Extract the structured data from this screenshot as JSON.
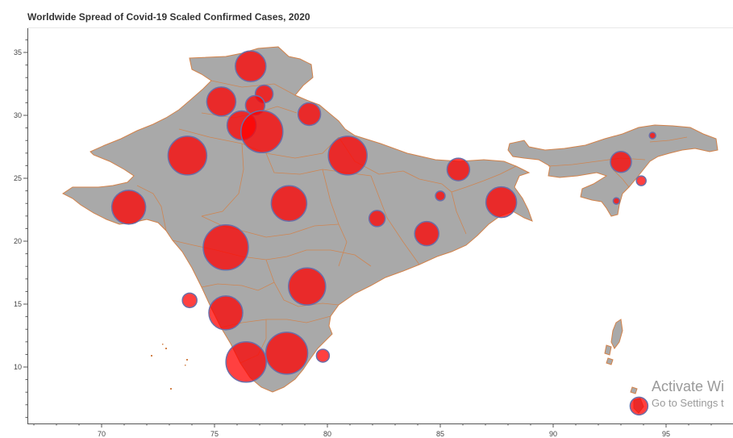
{
  "chart_data": {
    "type": "scatter",
    "title": "Worldwide Spread of Covid-19 Scaled Confirmed Cases, 2020",
    "xlabel": "",
    "ylabel": "",
    "xlim": [
      66,
      97.5
    ],
    "ylim": [
      5.5,
      37
    ],
    "x_ticks": [
      70,
      75,
      80,
      85,
      90,
      95
    ],
    "y_ticks": [
      10,
      15,
      20,
      25,
      30,
      35
    ],
    "grid": false,
    "marker_color": "#ff0000",
    "marker_edge_color": "#6a6fa8",
    "land_color": "#a9a9a9",
    "border_color": "#d2824a",
    "points": [
      {
        "x": 76.6,
        "y": 33.9,
        "size": 19
      },
      {
        "x": 75.3,
        "y": 31.1,
        "size": 18
      },
      {
        "x": 77.2,
        "y": 31.7,
        "size": 11
      },
      {
        "x": 76.8,
        "y": 30.8,
        "size": 12
      },
      {
        "x": 79.2,
        "y": 30.1,
        "size": 14
      },
      {
        "x": 76.2,
        "y": 29.2,
        "size": 18
      },
      {
        "x": 77.1,
        "y": 28.7,
        "size": 26
      },
      {
        "x": 73.8,
        "y": 26.8,
        "size": 24
      },
      {
        "x": 80.9,
        "y": 26.8,
        "size": 24
      },
      {
        "x": 85.8,
        "y": 25.7,
        "size": 14
      },
      {
        "x": 71.2,
        "y": 22.7,
        "size": 21
      },
      {
        "x": 78.3,
        "y": 23.0,
        "size": 22
      },
      {
        "x": 85.0,
        "y": 23.6,
        "size": 6
      },
      {
        "x": 87.7,
        "y": 23.1,
        "size": 19
      },
      {
        "x": 82.2,
        "y": 21.8,
        "size": 10
      },
      {
        "x": 84.4,
        "y": 20.6,
        "size": 15
      },
      {
        "x": 75.5,
        "y": 19.5,
        "size": 28
      },
      {
        "x": 79.1,
        "y": 16.4,
        "size": 23
      },
      {
        "x": 73.9,
        "y": 15.3,
        "size": 9
      },
      {
        "x": 75.5,
        "y": 14.3,
        "size": 21
      },
      {
        "x": 76.4,
        "y": 10.4,
        "size": 25
      },
      {
        "x": 78.2,
        "y": 11.1,
        "size": 26
      },
      {
        "x": 79.8,
        "y": 10.9,
        "size": 8
      },
      {
        "x": 93.0,
        "y": 26.3,
        "size": 13
      },
      {
        "x": 94.4,
        "y": 28.4,
        "size": 4
      },
      {
        "x": 93.9,
        "y": 24.8,
        "size": 6
      },
      {
        "x": 92.8,
        "y": 23.2,
        "size": 4
      },
      {
        "x": 93.8,
        "y": 6.9,
        "size": 11
      }
    ]
  },
  "watermark": {
    "line1": "Activate Wi",
    "line2": "Go to Settings t"
  }
}
